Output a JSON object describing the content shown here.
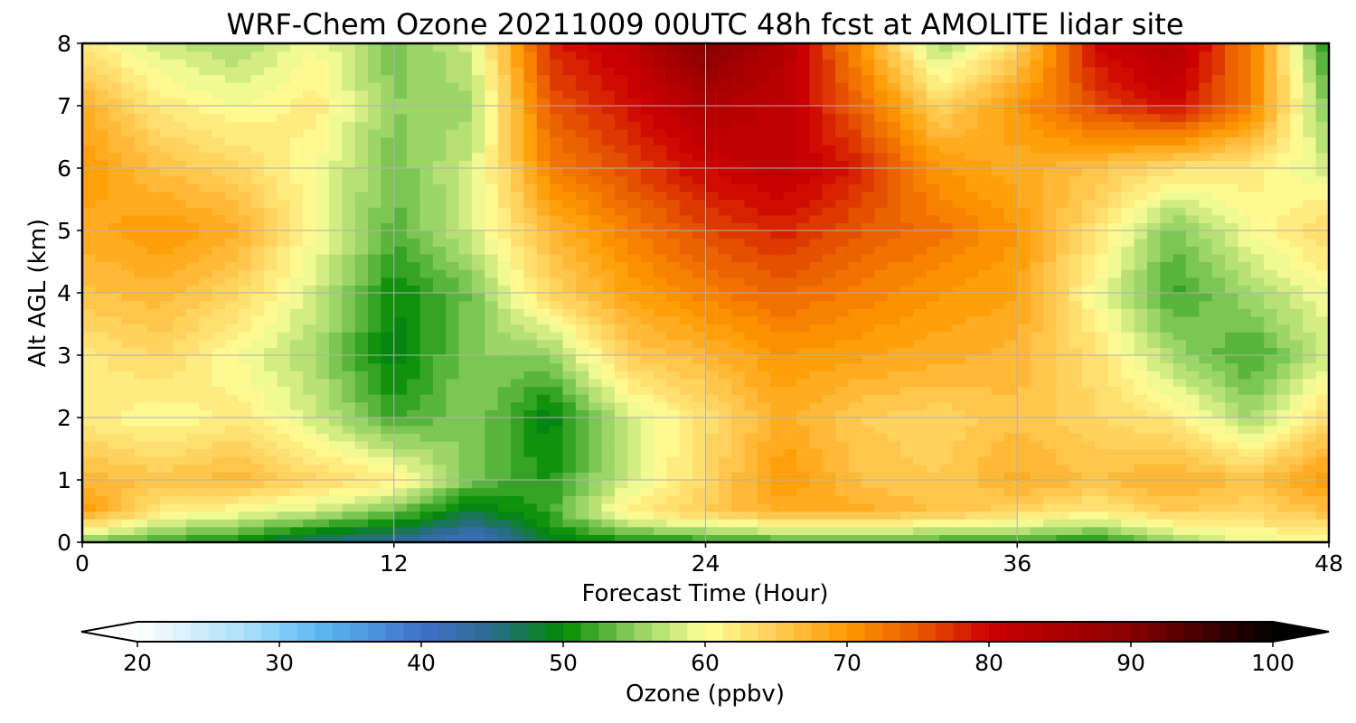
{
  "chart_data": {
    "type": "heatmap",
    "title": "WRF-Chem Ozone  20211009 00UTC 48h fcst at AMOLITE lidar site",
    "xlabel": "Forecast Time (Hour)",
    "ylabel": "Alt AGL (km)",
    "xlim": [
      0,
      48
    ],
    "ylim": [
      0,
      8
    ],
    "xticks": [
      "0",
      "12",
      "24",
      "36",
      "48"
    ],
    "yticks": [
      "0",
      "1",
      "2",
      "3",
      "4",
      "5",
      "6",
      "7",
      "8"
    ],
    "grid": true,
    "x_hours": [
      0,
      3,
      6,
      9,
      12,
      15,
      18,
      21,
      24,
      27,
      30,
      33,
      36,
      39,
      42,
      45,
      48
    ],
    "alt_km": [
      0,
      0.5,
      1,
      2,
      3,
      4,
      5,
      6,
      7,
      8
    ],
    "ozone_ppbv": [
      [
        54,
        52,
        50,
        45,
        44,
        40,
        49,
        50,
        51,
        52,
        52,
        52,
        52,
        50,
        55,
        59,
        60
      ],
      [
        70,
        62,
        60,
        58,
        54,
        48,
        52,
        62,
        65,
        68,
        68,
        66,
        64,
        62,
        65,
        64,
        66
      ],
      [
        67,
        66,
        67,
        64,
        62,
        54,
        51,
        58,
        64,
        70,
        66,
        65,
        68,
        66,
        68,
        66,
        70
      ],
      [
        62,
        60,
        62,
        58,
        52,
        55,
        49,
        58,
        63,
        68,
        65,
        64,
        66,
        64,
        62,
        56,
        64
      ],
      [
        62,
        64,
        60,
        56,
        49,
        55,
        55,
        65,
        67,
        70,
        69,
        68,
        67,
        63,
        56,
        52,
        58
      ],
      [
        66,
        67,
        64,
        58,
        50,
        54,
        64,
        69,
        72,
        74,
        72,
        70,
        69,
        60,
        52,
        56,
        60
      ],
      [
        68,
        70,
        68,
        60,
        53,
        58,
        67,
        72,
        76,
        78,
        75,
        73,
        70,
        63,
        54,
        60,
        64
      ],
      [
        70,
        66,
        64,
        60,
        54,
        58,
        72,
        76,
        80,
        82,
        78,
        70,
        68,
        66,
        63,
        62,
        58
      ],
      [
        68,
        62,
        60,
        62,
        55,
        56,
        75,
        79,
        84,
        82,
        74,
        64,
        70,
        76,
        80,
        72,
        54
      ],
      [
        62,
        58,
        56,
        60,
        54,
        58,
        78,
        82,
        90,
        84,
        70,
        56,
        64,
        80,
        84,
        72,
        50
      ]
    ],
    "colorbar": {
      "label": "Ozone  (ppbv)",
      "min": 20,
      "max": 100,
      "ticks": [
        "20",
        "30",
        "40",
        "50",
        "60",
        "70",
        "80",
        "90",
        "100"
      ],
      "extend": "both",
      "stops": [
        {
          "v": 20,
          "c": "#ffffff"
        },
        {
          "v": 28,
          "c": "#a6defa"
        },
        {
          "v": 33,
          "c": "#5ab6f0"
        },
        {
          "v": 40,
          "c": "#3f72c9"
        },
        {
          "v": 45,
          "c": "#2a6a8c"
        },
        {
          "v": 50,
          "c": "#008a00"
        },
        {
          "v": 55,
          "c": "#8fd060"
        },
        {
          "v": 60,
          "c": "#ffff99"
        },
        {
          "v": 65,
          "c": "#ffcc55"
        },
        {
          "v": 70,
          "c": "#ff9900"
        },
        {
          "v": 75,
          "c": "#e85a00"
        },
        {
          "v": 80,
          "c": "#cc0000"
        },
        {
          "v": 90,
          "c": "#880000"
        },
        {
          "v": 100,
          "c": "#000000"
        }
      ]
    }
  }
}
